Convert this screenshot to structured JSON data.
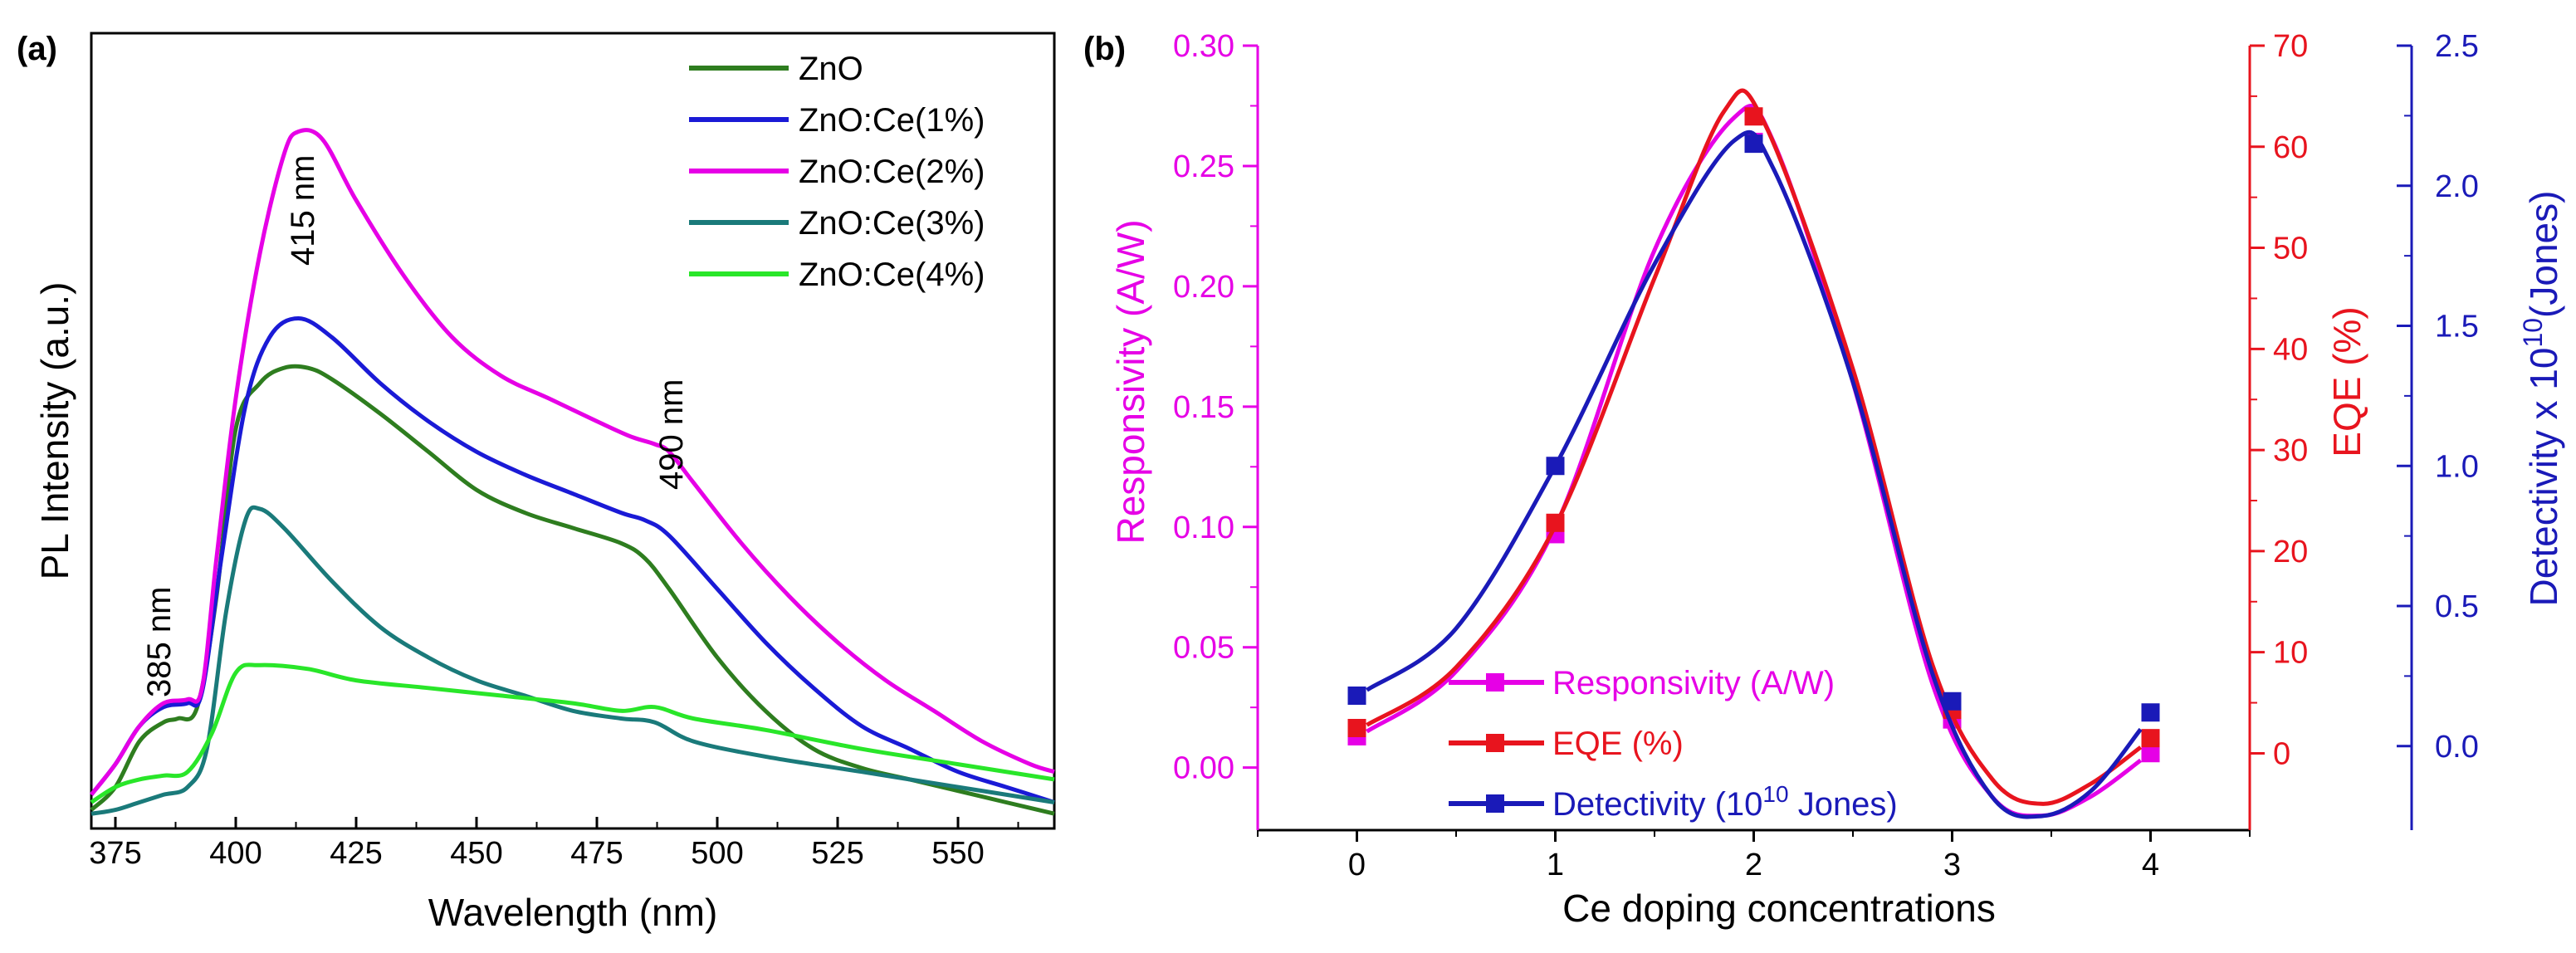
{
  "chart_data": [
    {
      "panel_label": "(a)",
      "type": "line",
      "xlabel": "Wavelength (nm)",
      "ylabel": "PL Intensity (a.u.)",
      "xlim": [
        370,
        570
      ],
      "ylim": [
        0,
        1
      ],
      "x_ticks": [
        375,
        400,
        425,
        450,
        475,
        500,
        525,
        550
      ],
      "y_ticks_shown": false,
      "legend": "top-right",
      "annotations": [
        "385 nm",
        "415 nm",
        "490 nm"
      ],
      "series": [
        {
          "name": "ZnO",
          "color": "#2e7d1f",
          "points": [
            [
              370,
              0.02
            ],
            [
              375,
              0.05
            ],
            [
              380,
              0.11
            ],
            [
              385,
              0.135
            ],
            [
              388,
              0.14
            ],
            [
              392,
              0.155
            ],
            [
              396,
              0.3
            ],
            [
              400,
              0.52
            ],
            [
              405,
              0.58
            ],
            [
              410,
              0.6
            ],
            [
              415,
              0.6
            ],
            [
              420,
              0.585
            ],
            [
              430,
              0.54
            ],
            [
              440,
              0.49
            ],
            [
              450,
              0.44
            ],
            [
              460,
              0.41
            ],
            [
              470,
              0.39
            ],
            [
              480,
              0.37
            ],
            [
              485,
              0.35
            ],
            [
              490,
              0.31
            ],
            [
              500,
              0.22
            ],
            [
              510,
              0.15
            ],
            [
              520,
              0.1
            ],
            [
              530,
              0.075
            ],
            [
              540,
              0.06
            ],
            [
              550,
              0.045
            ],
            [
              560,
              0.03
            ],
            [
              570,
              0.015
            ]
          ]
        },
        {
          "name": "ZnO:Ce(1%)",
          "color": "#1a1ad6",
          "points": [
            [
              370,
              0.04
            ],
            [
              375,
              0.08
            ],
            [
              380,
              0.13
            ],
            [
              385,
              0.155
            ],
            [
              390,
              0.16
            ],
            [
              393,
              0.175
            ],
            [
              397,
              0.35
            ],
            [
              402,
              0.55
            ],
            [
              407,
              0.64
            ],
            [
              413,
              0.665
            ],
            [
              420,
              0.64
            ],
            [
              430,
              0.58
            ],
            [
              440,
              0.53
            ],
            [
              450,
              0.49
            ],
            [
              460,
              0.46
            ],
            [
              470,
              0.435
            ],
            [
              480,
              0.41
            ],
            [
              485,
              0.4
            ],
            [
              490,
              0.38
            ],
            [
              500,
              0.31
            ],
            [
              510,
              0.24
            ],
            [
              520,
              0.18
            ],
            [
              530,
              0.13
            ],
            [
              540,
              0.1
            ],
            [
              550,
              0.07
            ],
            [
              560,
              0.05
            ],
            [
              570,
              0.03
            ]
          ]
        },
        {
          "name": "ZnO:Ce(2%)",
          "color": "#e600e6",
          "points": [
            [
              370,
              0.04
            ],
            [
              375,
              0.08
            ],
            [
              380,
              0.13
            ],
            [
              385,
              0.16
            ],
            [
              390,
              0.165
            ],
            [
              393,
              0.18
            ],
            [
              396,
              0.35
            ],
            [
              400,
              0.56
            ],
            [
              405,
              0.75
            ],
            [
              410,
              0.88
            ],
            [
              413,
              0.91
            ],
            [
              418,
              0.9
            ],
            [
              425,
              0.82
            ],
            [
              435,
              0.72
            ],
            [
              445,
              0.64
            ],
            [
              455,
              0.59
            ],
            [
              465,
              0.56
            ],
            [
              475,
              0.53
            ],
            [
              482,
              0.51
            ],
            [
              487,
              0.5
            ],
            [
              490,
              0.49
            ],
            [
              495,
              0.45
            ],
            [
              505,
              0.37
            ],
            [
              515,
              0.3
            ],
            [
              525,
              0.24
            ],
            [
              535,
              0.19
            ],
            [
              545,
              0.15
            ],
            [
              555,
              0.11
            ],
            [
              565,
              0.08
            ],
            [
              570,
              0.07
            ]
          ]
        },
        {
          "name": "ZnO:Ce(3%)",
          "color": "#1a7a7a",
          "points": [
            [
              370,
              0.015
            ],
            [
              375,
              0.02
            ],
            [
              380,
              0.03
            ],
            [
              385,
              0.04
            ],
            [
              390,
              0.05
            ],
            [
              394,
              0.1
            ],
            [
              398,
              0.28
            ],
            [
              402,
              0.4
            ],
            [
              405,
              0.415
            ],
            [
              410,
              0.39
            ],
            [
              420,
              0.32
            ],
            [
              430,
              0.26
            ],
            [
              440,
              0.22
            ],
            [
              450,
              0.19
            ],
            [
              460,
              0.17
            ],
            [
              470,
              0.15
            ],
            [
              480,
              0.14
            ],
            [
              487,
              0.135
            ],
            [
              495,
              0.11
            ],
            [
              510,
              0.09
            ],
            [
              530,
              0.07
            ],
            [
              550,
              0.05
            ],
            [
              570,
              0.03
            ]
          ]
        },
        {
          "name": "ZnO:Ce(4%)",
          "color": "#29e629",
          "points": [
            [
              370,
              0.03
            ],
            [
              375,
              0.05
            ],
            [
              380,
              0.06
            ],
            [
              385,
              0.065
            ],
            [
              390,
              0.07
            ],
            [
              395,
              0.12
            ],
            [
              400,
              0.2
            ],
            [
              405,
              0.21
            ],
            [
              415,
              0.205
            ],
            [
              425,
              0.19
            ],
            [
              440,
              0.18
            ],
            [
              455,
              0.17
            ],
            [
              470,
              0.16
            ],
            [
              480,
              0.15
            ],
            [
              487,
              0.155
            ],
            [
              495,
              0.14
            ],
            [
              510,
              0.125
            ],
            [
              530,
              0.1
            ],
            [
              550,
              0.08
            ],
            [
              570,
              0.06
            ]
          ]
        }
      ]
    },
    {
      "panel_label": "(b)",
      "type": "line",
      "xlabel": "Ce doping concentrations",
      "xlim": [
        -0.5,
        4.5
      ],
      "x_ticks": [
        0,
        1,
        2,
        3,
        4
      ],
      "legend": "bottom-left",
      "axes": [
        {
          "side": "left",
          "label": "Responsivity (A/W)",
          "color": "#e600e6",
          "ylim": [
            -0.026,
            0.3
          ],
          "ticks": [
            0.0,
            0.05,
            0.1,
            0.15,
            0.2,
            0.25,
            0.3
          ],
          "tick_labels": [
            "0.00",
            "0.05",
            "0.10",
            "0.15",
            "0.20",
            "0.25",
            "0.30"
          ]
        },
        {
          "side": "right",
          "label": "EQE (%)",
          "color": "#e8141e",
          "ylim": [
            -7.6,
            70
          ],
          "ticks": [
            0,
            10,
            20,
            30,
            40,
            50,
            60,
            70
          ],
          "tick_labels": [
            "0",
            "10",
            "20",
            "30",
            "40",
            "50",
            "60",
            "70"
          ]
        },
        {
          "side": "right-outer",
          "label": "Detectivity x 10",
          "label_exponent": "10",
          "label_unit": "(Jones)",
          "color": "#1a1ab8",
          "ylim": [
            -0.3,
            2.5
          ],
          "ticks": [
            0.0,
            0.5,
            1.0,
            1.5,
            2.0,
            2.5
          ],
          "tick_labels": [
            "0.0",
            "0.5",
            "1.0",
            "1.5",
            "2.0",
            "2.5"
          ]
        }
      ],
      "series": [
        {
          "name": "Responsivity (A/W)",
          "axis": 0,
          "color": "#e600e6",
          "markers": [
            [
              0,
              0.013
            ],
            [
              1,
              0.097
            ],
            [
              2,
              0.26
            ],
            [
              3,
              0.02
            ],
            [
              4,
              0.006
            ]
          ],
          "curve": [
            [
              0.05,
              0.015
            ],
            [
              0.5,
              0.04
            ],
            [
              1.0,
              0.1
            ],
            [
              1.5,
              0.215
            ],
            [
              1.9,
              0.27
            ],
            [
              2.1,
              0.26
            ],
            [
              2.5,
              0.16
            ],
            [
              2.9,
              0.035
            ],
            [
              3.2,
              -0.012
            ],
            [
              3.45,
              -0.02
            ],
            [
              3.7,
              -0.012
            ],
            [
              3.95,
              0.003
            ]
          ]
        },
        {
          "name": "EQE (%)",
          "axis": 1,
          "color": "#e8141e",
          "markers": [
            [
              0,
              2.5
            ],
            [
              1,
              22.8
            ],
            [
              2,
              63.0
            ],
            [
              3,
              4.3
            ],
            [
              4,
              1.5
            ]
          ],
          "curve": [
            [
              0.05,
              2.8
            ],
            [
              0.5,
              8.5
            ],
            [
              1.0,
              22.5
            ],
            [
              1.5,
              47.0
            ],
            [
              1.85,
              63.5
            ],
            [
              2.05,
              62.5
            ],
            [
              2.5,
              38.0
            ],
            [
              2.9,
              8.8
            ],
            [
              3.2,
              -2.5
            ],
            [
              3.45,
              -5.0
            ],
            [
              3.7,
              -3.0
            ],
            [
              3.95,
              0.6
            ]
          ]
        },
        {
          "name": "Detectivity (10",
          "name_sup": "10",
          "name_suffix": " Jones)",
          "axis": 2,
          "color": "#1a1ab8",
          "markers": [
            [
              0,
              0.18
            ],
            [
              1,
              1.0
            ],
            [
              2,
              2.15
            ],
            [
              3,
              0.16
            ],
            [
              4,
              0.12
            ]
          ],
          "curve": [
            [
              0.05,
              0.2
            ],
            [
              0.5,
              0.42
            ],
            [
              1.0,
              1.0
            ],
            [
              1.5,
              1.72
            ],
            [
              1.9,
              2.16
            ],
            [
              2.1,
              2.06
            ],
            [
              2.5,
              1.3
            ],
            [
              2.9,
              0.26
            ],
            [
              3.2,
              -0.18
            ],
            [
              3.45,
              -0.25
            ],
            [
              3.7,
              -0.16
            ],
            [
              3.95,
              0.06
            ]
          ]
        }
      ]
    }
  ]
}
